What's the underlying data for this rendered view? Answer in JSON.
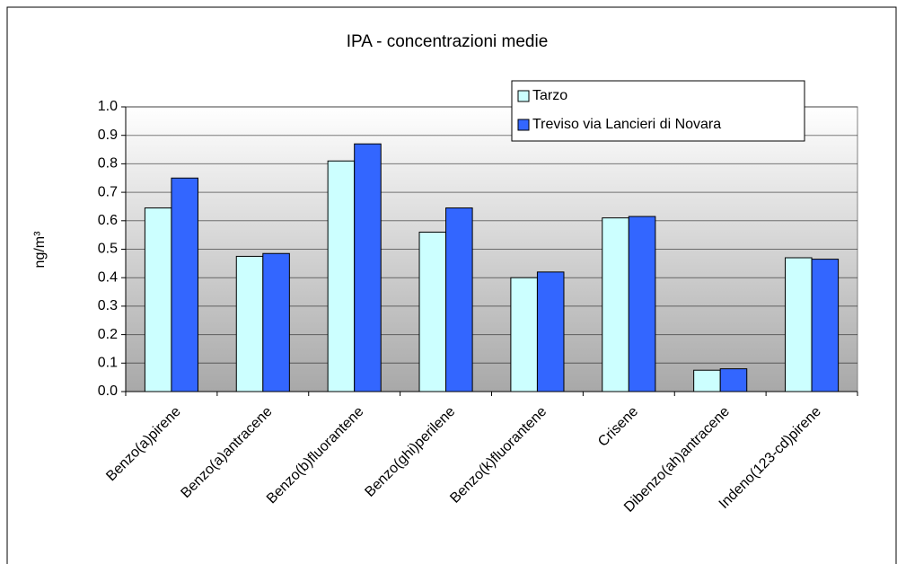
{
  "chart_data": {
    "type": "bar",
    "title": "IPA - concentrazioni medie",
    "y_label": "ng/m³",
    "categories": [
      "Benzo(a)pirene",
      "Benzo(a)antracene",
      "Benzo(b)fluorantene",
      "Benzo(ghi)perilene",
      "Benzo(k)fluorantene",
      "Crisene",
      "Dibenzo(ah)antracene",
      "Indeno(123-cd)pirene"
    ],
    "series": [
      {
        "name": "Tarzo",
        "color": "#ccffff",
        "values": [
          0.645,
          0.475,
          0.81,
          0.56,
          0.4,
          0.61,
          0.075,
          0.47
        ]
      },
      {
        "name": "Treviso via Lancieri di Novara",
        "color": "#3366ff",
        "values": [
          0.75,
          0.485,
          0.87,
          0.645,
          0.42,
          0.615,
          0.08,
          0.465
        ]
      }
    ],
    "ylim": [
      0,
      1
    ],
    "yticks": [
      {
        "value": 0,
        "label": "0.0"
      },
      0.1,
      0.2,
      0.3,
      0.4,
      0.5,
      0.6,
      0.7,
      0.8,
      0.9,
      {
        "value": 1,
        "label": "1.0"
      }
    ],
    "grid": true,
    "legend": "top-right"
  }
}
